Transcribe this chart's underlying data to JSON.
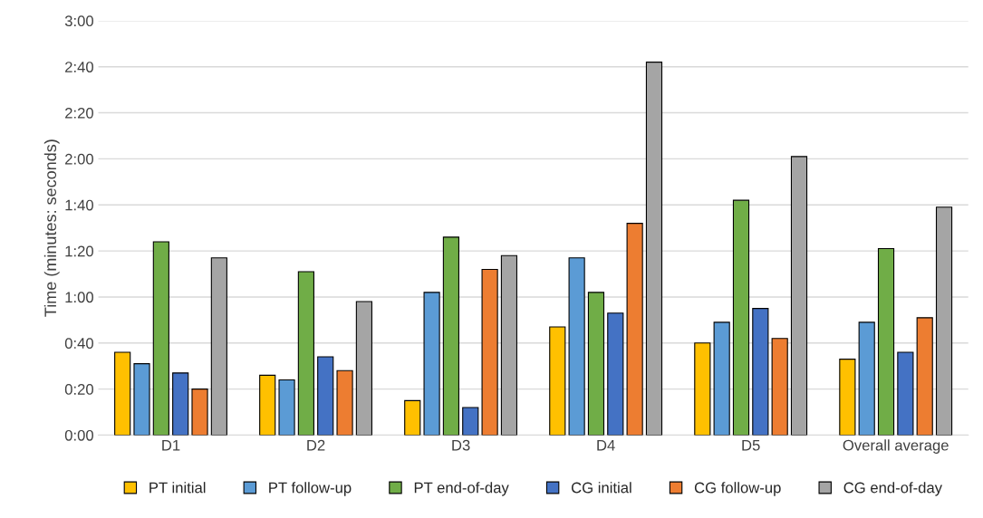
{
  "chart_data": {
    "type": "bar",
    "ylabel": "Time (minutes: seconds)",
    "categories": [
      "D1",
      "D2",
      "D3",
      "D4",
      "D5",
      "Overall average"
    ],
    "series": [
      {
        "name": "PT initial",
        "color": "#ffc000",
        "values": [
          36,
          26,
          15,
          47,
          40,
          33
        ]
      },
      {
        "name": "PT follow-up",
        "color": "#5b9bd5",
        "values": [
          31,
          24,
          62,
          77,
          49,
          49
        ]
      },
      {
        "name": "PT end-of-day",
        "color": "#70ad47",
        "values": [
          84,
          71,
          86,
          62,
          102,
          81
        ]
      },
      {
        "name": "CG initial",
        "color": "#4472c4",
        "values": [
          27,
          34,
          12,
          53,
          55,
          36
        ]
      },
      {
        "name": "CG follow-up",
        "color": "#ed7d31",
        "values": [
          20,
          28,
          72,
          92,
          42,
          51
        ]
      },
      {
        "name": "CG end-of-day",
        "color": "#a5a5a5",
        "values": [
          77,
          58,
          78,
          162,
          121,
          99
        ]
      }
    ],
    "ylim": [
      0,
      180
    ],
    "yticks": [
      {
        "value": 0,
        "label": "0:00"
      },
      {
        "value": 20,
        "label": "0:20"
      },
      {
        "value": 40,
        "label": "0:40"
      },
      {
        "value": 60,
        "label": "1:00"
      },
      {
        "value": 80,
        "label": "1:20"
      },
      {
        "value": 100,
        "label": "1:40"
      },
      {
        "value": 120,
        "label": "2:00"
      },
      {
        "value": 140,
        "label": "2:20"
      },
      {
        "value": 160,
        "label": "2:40"
      },
      {
        "value": 180,
        "label": "3:00"
      }
    ],
    "grid": "y",
    "legend": "bottom"
  }
}
